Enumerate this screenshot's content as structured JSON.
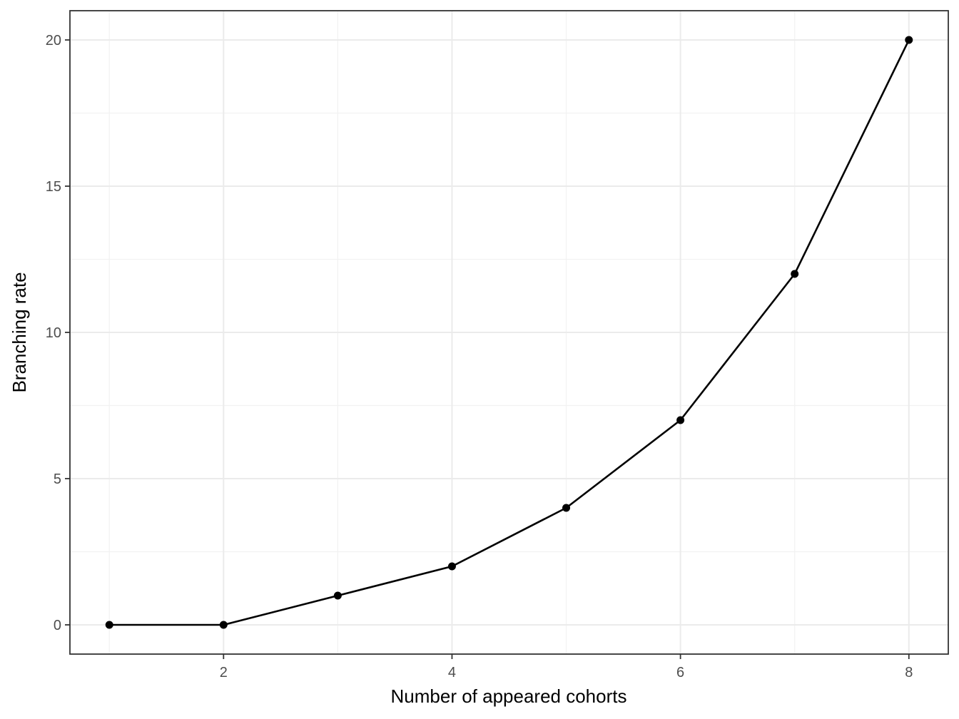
{
  "chart_data": {
    "type": "line",
    "title": "",
    "xlabel": "Number of appeared cohorts",
    "ylabel": "Branching rate",
    "xlim": [
      0.655,
      8.345
    ],
    "ylim": [
      -1,
      21
    ],
    "x_ticks": [
      2,
      4,
      6,
      8
    ],
    "y_ticks": [
      0,
      5,
      10,
      15,
      20
    ],
    "x_minor": [
      1,
      3,
      5,
      7
    ],
    "y_minor": [
      2.5,
      7.5,
      12.5,
      17.5
    ],
    "grid": true,
    "legend": "none",
    "series": [
      {
        "x": [
          1,
          2,
          3,
          4,
          5,
          6,
          7,
          8
        ],
        "y": [
          0,
          0,
          1,
          2,
          4,
          7,
          12,
          20
        ],
        "color": "#000000",
        "markers": true
      }
    ]
  }
}
